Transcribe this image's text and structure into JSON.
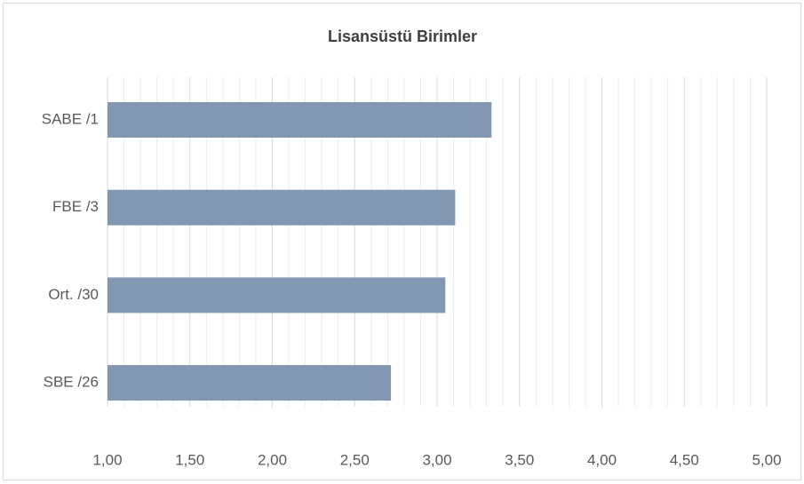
{
  "chart_data": {
    "type": "barh",
    "title": "Lisansüstü Birimler",
    "categories": [
      "SABE /1",
      "FBE /3",
      "Ort. /30",
      "SBE /26"
    ],
    "values": [
      3.33,
      3.11,
      3.05,
      2.72
    ],
    "color": "#8197b2",
    "xlim": [
      1,
      5
    ],
    "xticks": [
      {
        "value": 1,
        "label": "1,00"
      },
      {
        "value": 1.5,
        "label": "1,50"
      },
      {
        "value": 2,
        "label": "2,00"
      },
      {
        "value": 2.5,
        "label": "2,50"
      },
      {
        "value": 3,
        "label": "3,00"
      },
      {
        "value": 3.5,
        "label": "3,50"
      },
      {
        "value": 4,
        "label": "4,00"
      },
      {
        "value": 4.5,
        "label": "4,50"
      },
      {
        "value": 5,
        "label": "5,00"
      }
    ],
    "xminorticks": [
      1.1,
      1.2,
      1.3,
      1.4,
      1.6,
      1.7,
      1.8,
      1.9,
      2.1,
      2.2,
      2.3,
      2.4,
      2.6,
      2.7,
      2.8,
      2.9,
      3.1,
      3.2,
      3.3,
      3.4,
      3.6,
      3.7,
      3.8,
      3.9,
      4.1,
      4.2,
      4.3,
      4.4,
      4.6,
      4.7,
      4.8,
      4.9
    ],
    "grid": true
  }
}
